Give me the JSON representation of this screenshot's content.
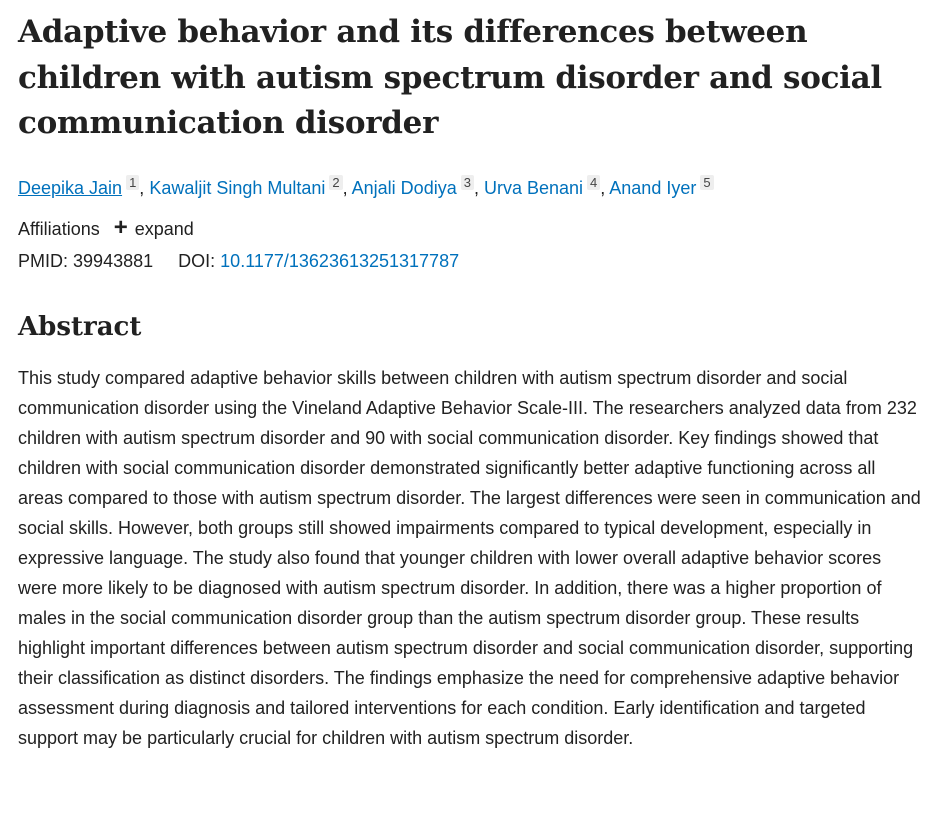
{
  "article": {
    "title": "Adaptive behavior and its differences between children with autism spectrum disorder and social communication disorder"
  },
  "authors": [
    {
      "name": "Deepika Jain",
      "sup": "1"
    },
    {
      "name": "Kawaljit Singh Multani",
      "sup": "2"
    },
    {
      "name": "Anjali Dodiya",
      "sup": "3"
    },
    {
      "name": "Urva Benani",
      "sup": "4"
    },
    {
      "name": "Anand Iyer",
      "sup": "5"
    }
  ],
  "author_separator": ", ",
  "affiliations": {
    "label": "Affiliations",
    "expand_label": "expand",
    "expand_icon": "+"
  },
  "identifiers": {
    "pmid_label": "PMID:",
    "pmid_value": "39943881",
    "doi_label": "DOI:",
    "doi_value": "10.1177/13623613251317787"
  },
  "abstract": {
    "heading": "Abstract",
    "text": "This study compared adaptive behavior skills between children with autism spectrum disorder and social communication disorder using the Vineland Adaptive Behavior Scale-III. The researchers analyzed data from 232 children with autism spectrum disorder and 90 with social communication disorder. Key findings showed that children with social communication disorder demonstrated significantly better adaptive functioning across all areas compared to those with autism spectrum disorder. The largest differences were seen in communication and social skills. However, both groups still showed impairments compared to typical development, especially in expressive language. The study also found that younger children with lower overall adaptive behavior scores were more likely to be diagnosed with autism spectrum disorder. In addition, there was a higher proportion of males in the social communication disorder group than the autism spectrum disorder group. These results highlight important differences between autism spectrum disorder and social communication disorder, supporting their classification as distinct disorders. The findings emphasize the need for comprehensive adaptive behavior assessment during diagnosis and tailored interventions for each condition. Early identification and targeted support may be particularly crucial for children with autism spectrum disorder."
  },
  "colors": {
    "link": "#0071bc",
    "text": "#212121",
    "sup_background": "#eeeeee"
  }
}
